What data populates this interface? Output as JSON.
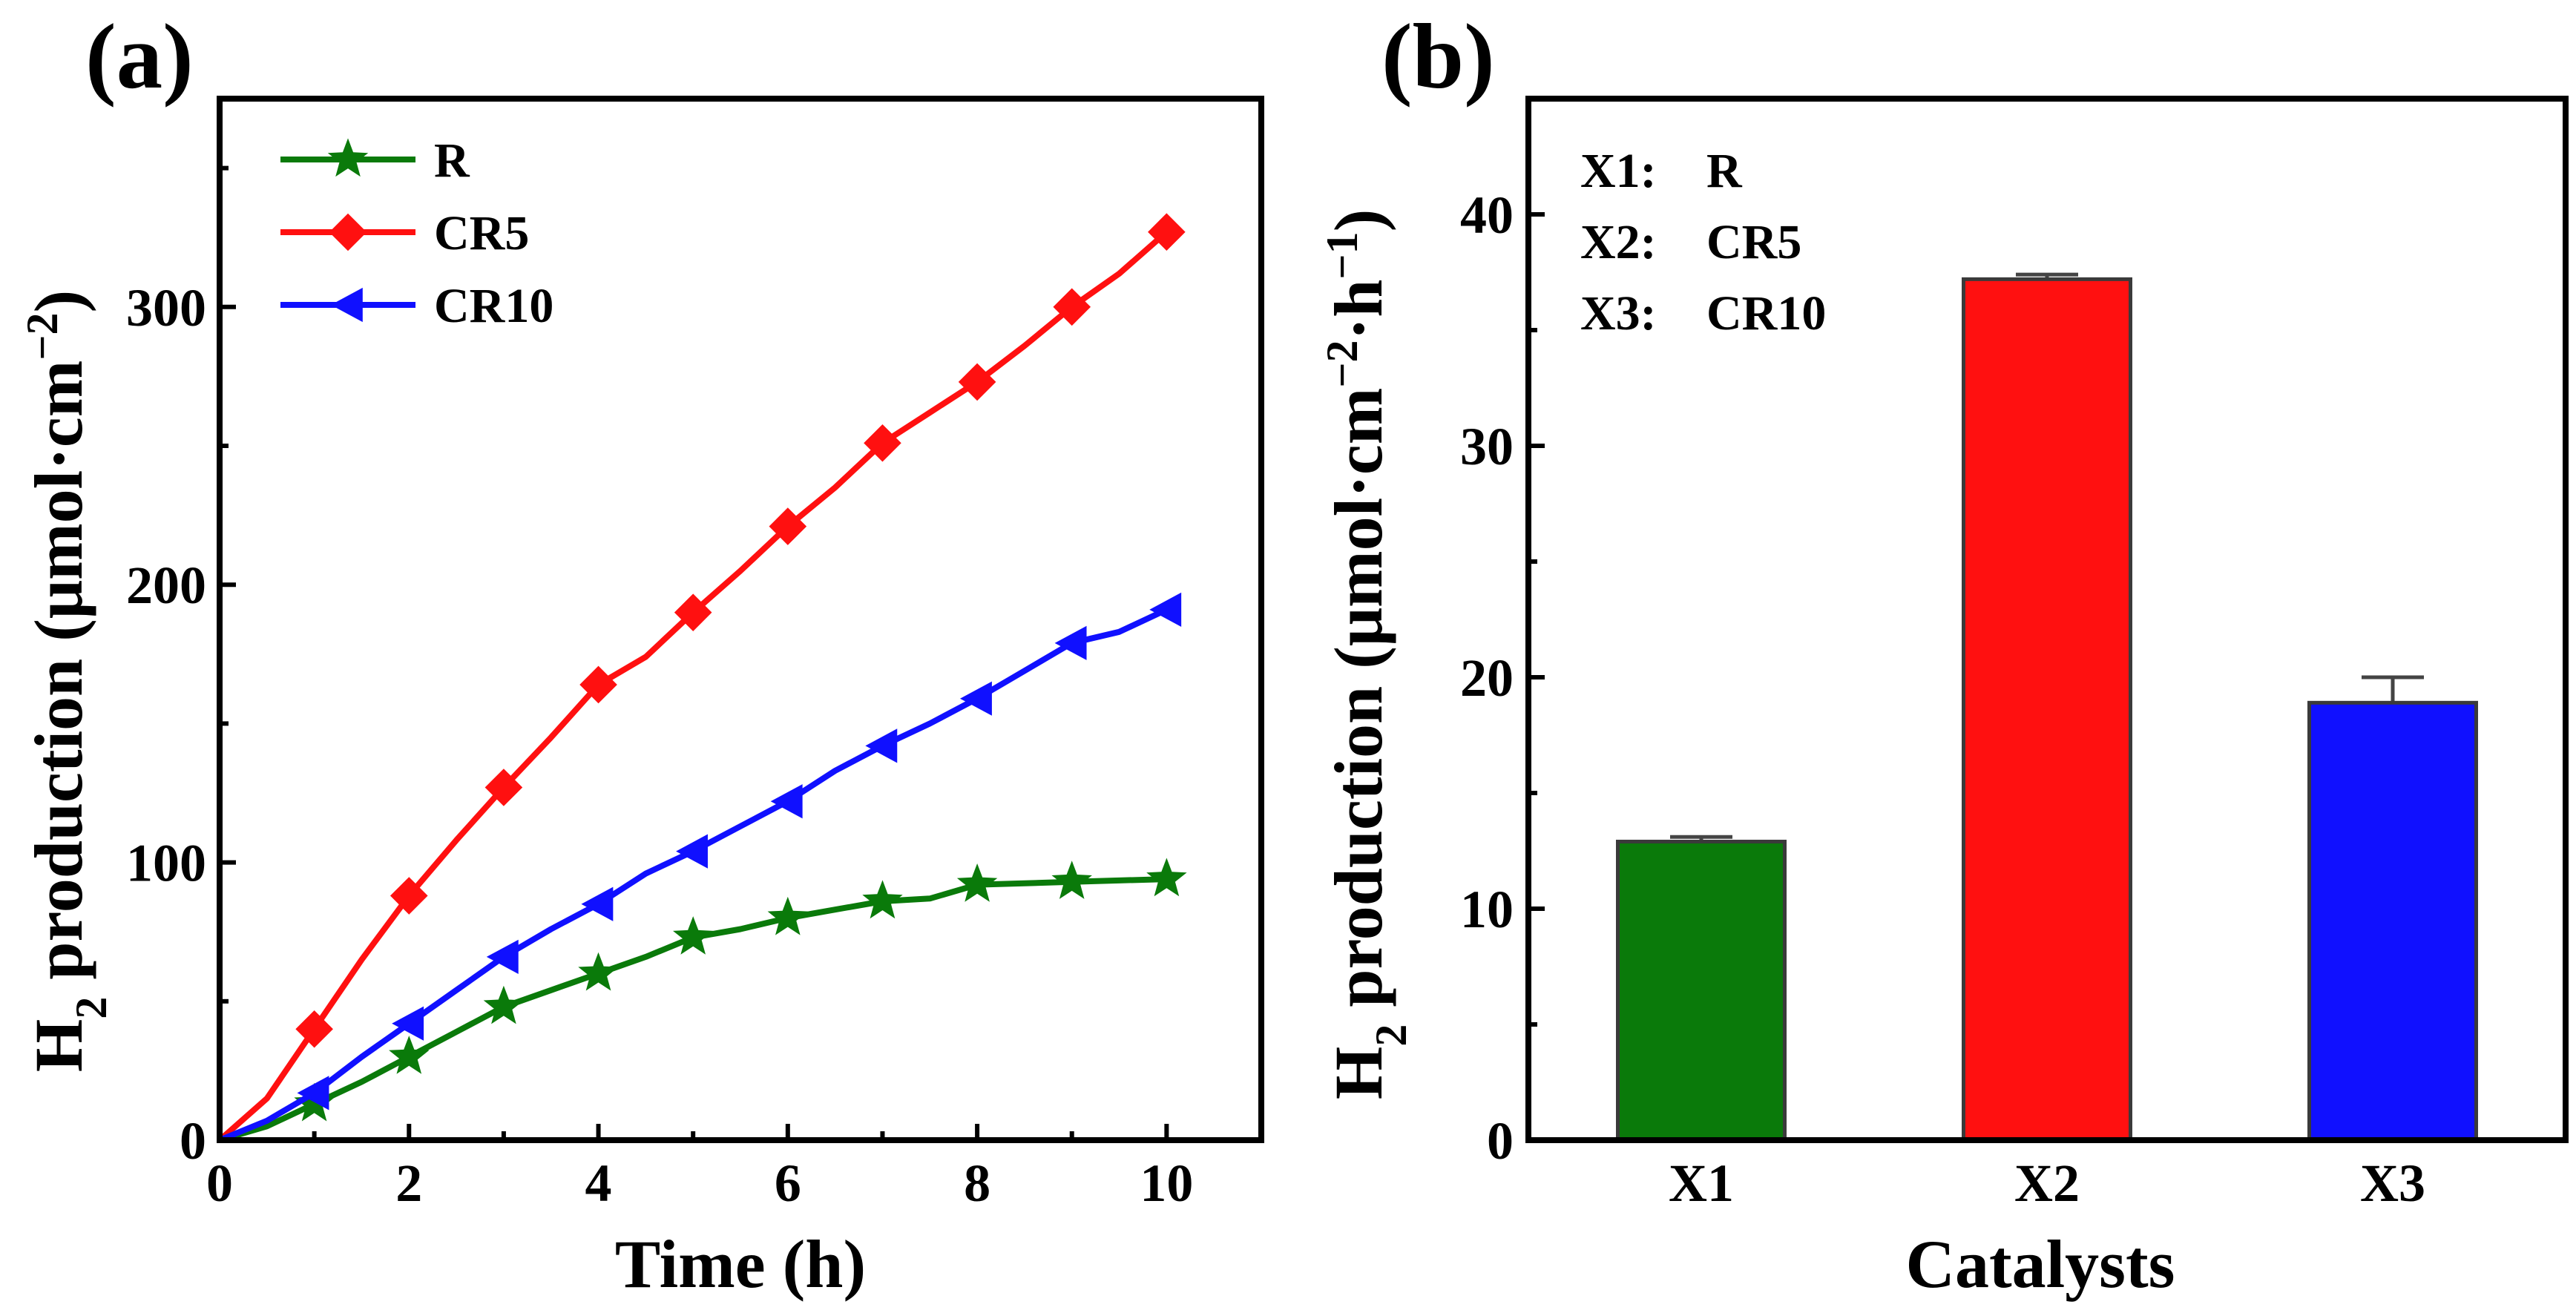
{
  "chart_data": [
    {
      "type": "line",
      "panel_label": "(a)",
      "xlabel": "Time (h)",
      "ylabel": {
        "main": "H",
        "sub": "2",
        "rest": " production (μmol·cm",
        "sup": "−2",
        "end": ")"
      },
      "xlim": [
        0,
        11
      ],
      "ylim": [
        0,
        375
      ],
      "xticks": [
        0,
        2,
        4,
        6,
        8,
        10
      ],
      "xtick_labels": [
        "0",
        "2",
        "4",
        "6",
        "8",
        "10"
      ],
      "yticks": [
        0,
        100,
        200,
        300
      ],
      "ytick_labels": [
        "0",
        "100",
        "200",
        "300"
      ],
      "grid": false,
      "legend_position": "top-left",
      "series": [
        {
          "name": "R",
          "color": "#0a7a0a",
          "marker": "star",
          "x": [
            0,
            0.5,
            1,
            1.5,
            2,
            2.5,
            3,
            3.5,
            4,
            4.5,
            5,
            5.5,
            6,
            6.5,
            7,
            7.5,
            8,
            8.5,
            9,
            9.5,
            10
          ],
          "y": [
            0,
            5,
            13,
            21,
            30,
            39,
            48,
            54,
            60,
            66,
            73,
            76,
            80,
            83,
            86,
            87,
            92,
            92.5,
            93,
            93.5,
            94
          ],
          "marker_x": [
            1,
            2,
            3,
            4,
            5,
            6,
            7,
            8,
            9,
            10
          ]
        },
        {
          "name": "CR5",
          "color": "#ff1010",
          "marker": "diamond",
          "x": [
            0,
            0.5,
            1,
            1.5,
            2,
            2.5,
            3,
            3.5,
            4,
            4.5,
            5,
            5.5,
            6,
            6.5,
            7,
            7.5,
            8,
            8.5,
            9,
            9.5,
            10
          ],
          "y": [
            0,
            15,
            40,
            65,
            88,
            108,
            127,
            145,
            164,
            174,
            190,
            205,
            221,
            235,
            251,
            262,
            273,
            286,
            300,
            312,
            327
          ],
          "marker_x": [
            1,
            2,
            3,
            4,
            5,
            6,
            7,
            8,
            9,
            10
          ]
        },
        {
          "name": "CR10",
          "color": "#1010ff",
          "marker": "triangle-left",
          "x": [
            0,
            0.5,
            1,
            1.5,
            2,
            2.5,
            3,
            3.5,
            4,
            4.5,
            5,
            5.5,
            6,
            6.5,
            7,
            7.5,
            8,
            8.5,
            9,
            9.5,
            10
          ],
          "y": [
            0,
            7,
            17,
            30,
            42,
            54,
            66,
            76,
            85,
            96,
            104,
            113,
            122,
            133,
            142,
            150,
            159,
            169,
            179,
            183,
            191
          ],
          "marker_x": [
            1,
            2,
            3,
            4,
            5,
            6,
            7,
            8,
            9,
            10
          ]
        }
      ]
    },
    {
      "type": "bar",
      "panel_label": "(b)",
      "xlabel": "Catalysts",
      "ylabel": {
        "main": "H",
        "sub": "2",
        "rest": " production (μmol·cm",
        "sup": "−2",
        "mid": "·h",
        "sup2": "−1",
        "end": ")"
      },
      "categories": [
        "X1",
        "X2",
        "X3"
      ],
      "values": [
        12.9,
        37.2,
        18.9
      ],
      "errors": [
        0.2,
        0.2,
        1.1
      ],
      "colors": [
        "#0a7a0a",
        "#ff1010",
        "#1010ff"
      ],
      "ylim": [
        0,
        45
      ],
      "yticks": [
        0,
        10,
        20,
        30,
        40
      ],
      "ytick_labels": [
        "0",
        "10",
        "20",
        "30",
        "40"
      ],
      "grid": false,
      "annotations": [
        {
          "key": "X1:",
          "value": "R"
        },
        {
          "key": "X2:",
          "value": "CR5"
        },
        {
          "key": "X3:",
          "value": "CR10"
        }
      ]
    }
  ]
}
